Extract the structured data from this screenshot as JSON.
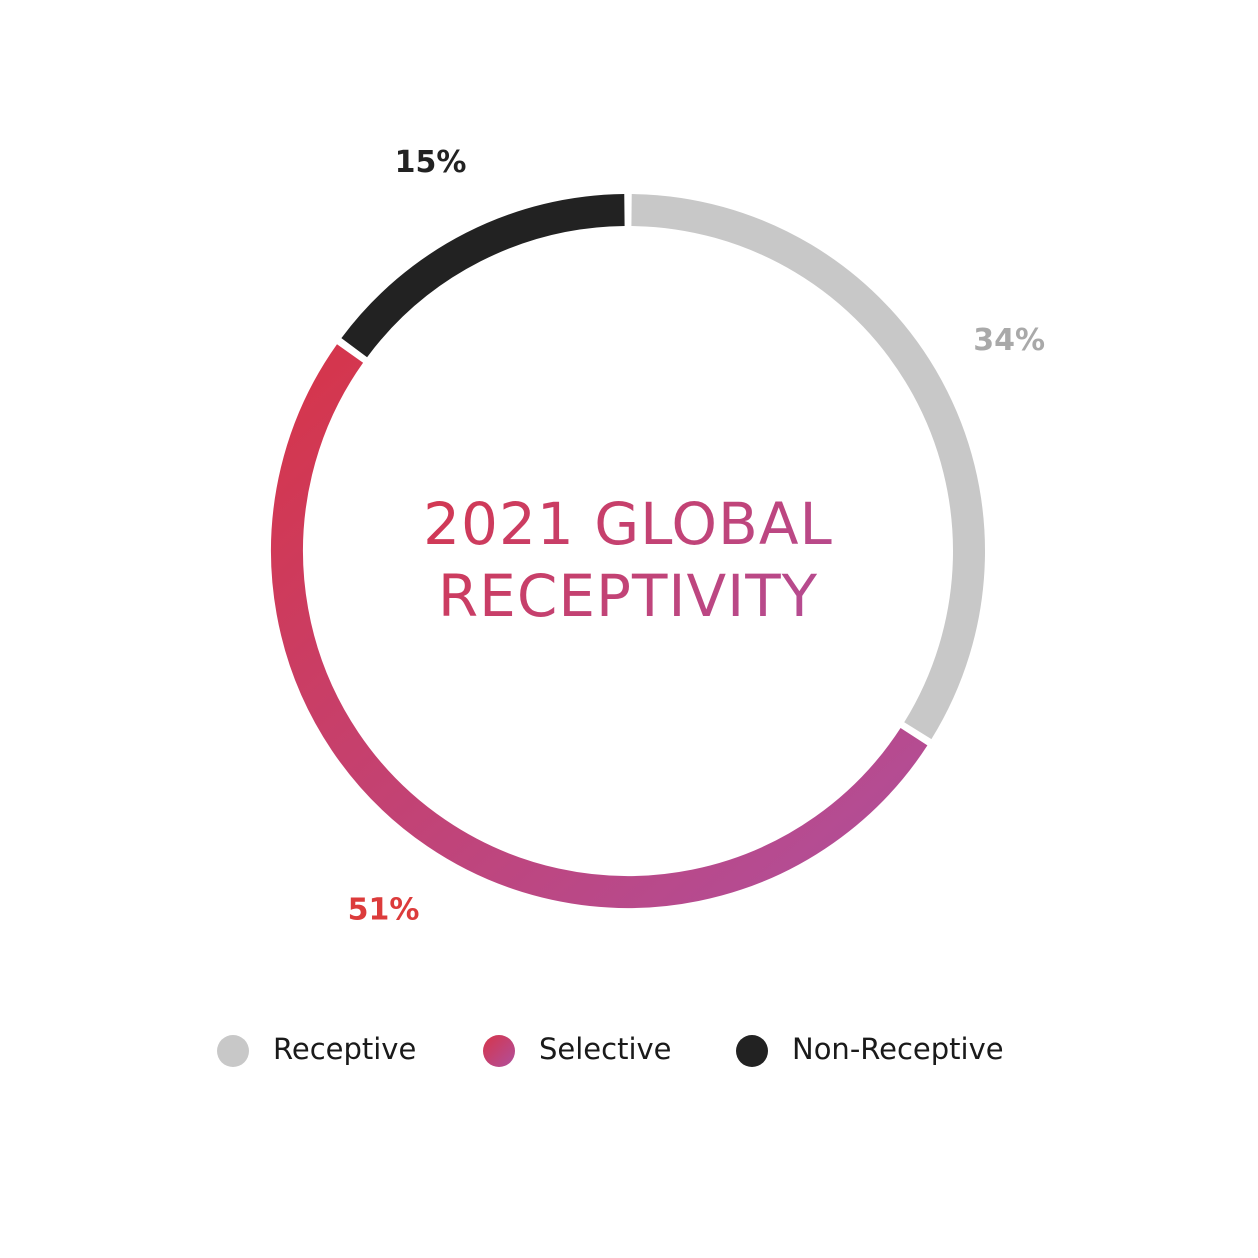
{
  "chart_data": {
    "type": "donut",
    "title": "2021 GLOBAL RECEPTIVITY",
    "categories": [
      "Receptive",
      "Selective",
      "Non-Receptive"
    ],
    "values": [
      34,
      51,
      15
    ],
    "value_labels": [
      "34%",
      "51%",
      "15%"
    ],
    "colors": [
      "#c8c8c8",
      [
        "#d6354a",
        "#b04f9c"
      ],
      "#222222"
    ],
    "label_colors": [
      "#a9a9a9",
      "#dc3b3b",
      "#222222"
    ],
    "start_angle": 0,
    "direction": "clockwise",
    "legend": "bottom"
  }
}
